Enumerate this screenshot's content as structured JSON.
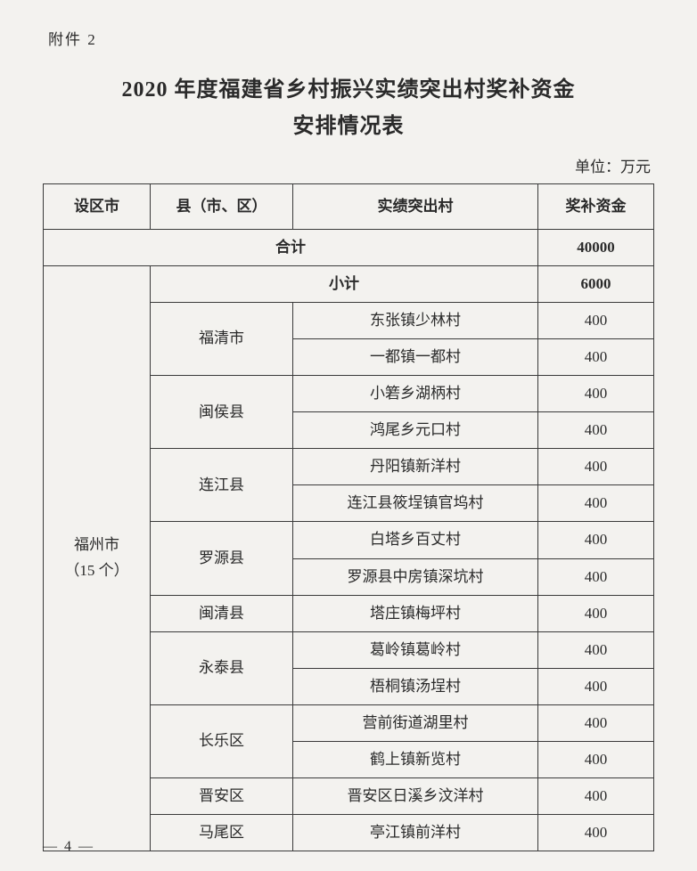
{
  "attachment_label": "附件 2",
  "title_line1": "2020 年度福建省乡村振兴实绩突出村奖补资金",
  "title_line2": "安排情况表",
  "unit_label": "单位：万元",
  "headers": {
    "city": "设区市",
    "county": "县（市、区）",
    "village": "实绩突出村",
    "fund": "奖补资金"
  },
  "total_label": "合计",
  "total_value": "40000",
  "subtotal_label": "小计",
  "city": {
    "name_line1": "福州市",
    "name_line2": "（15 个）",
    "subtotal_value": "6000",
    "groups": [
      {
        "county": "福清市",
        "rows": [
          {
            "village": "东张镇少林村",
            "fund": "400"
          },
          {
            "village": "一都镇一都村",
            "fund": "400"
          }
        ]
      },
      {
        "county": "闽侯县",
        "rows": [
          {
            "village": "小箬乡湖柄村",
            "fund": "400"
          },
          {
            "village": "鸿尾乡元口村",
            "fund": "400"
          }
        ]
      },
      {
        "county": "连江县",
        "rows": [
          {
            "village": "丹阳镇新洋村",
            "fund": "400"
          },
          {
            "village": "连江县筱埕镇官坞村",
            "fund": "400"
          }
        ]
      },
      {
        "county": "罗源县",
        "rows": [
          {
            "village": "白塔乡百丈村",
            "fund": "400"
          },
          {
            "village": "罗源县中房镇深坑村",
            "fund": "400"
          }
        ]
      },
      {
        "county": "闽清县",
        "rows": [
          {
            "village": "塔庄镇梅坪村",
            "fund": "400"
          }
        ]
      },
      {
        "county": "永泰县",
        "rows": [
          {
            "village": "葛岭镇葛岭村",
            "fund": "400"
          },
          {
            "village": "梧桐镇汤埕村",
            "fund": "400"
          }
        ]
      },
      {
        "county": "长乐区",
        "rows": [
          {
            "village": "营前街道湖里村",
            "fund": "400"
          },
          {
            "village": "鹤上镇新览村",
            "fund": "400"
          }
        ]
      },
      {
        "county": "晋安区",
        "rows": [
          {
            "village": "晋安区日溪乡汶洋村",
            "fund": "400"
          }
        ]
      },
      {
        "county": "马尾区",
        "rows": [
          {
            "village": "亭江镇前洋村",
            "fund": "400"
          }
        ]
      }
    ]
  },
  "page_number": "— 4 —"
}
